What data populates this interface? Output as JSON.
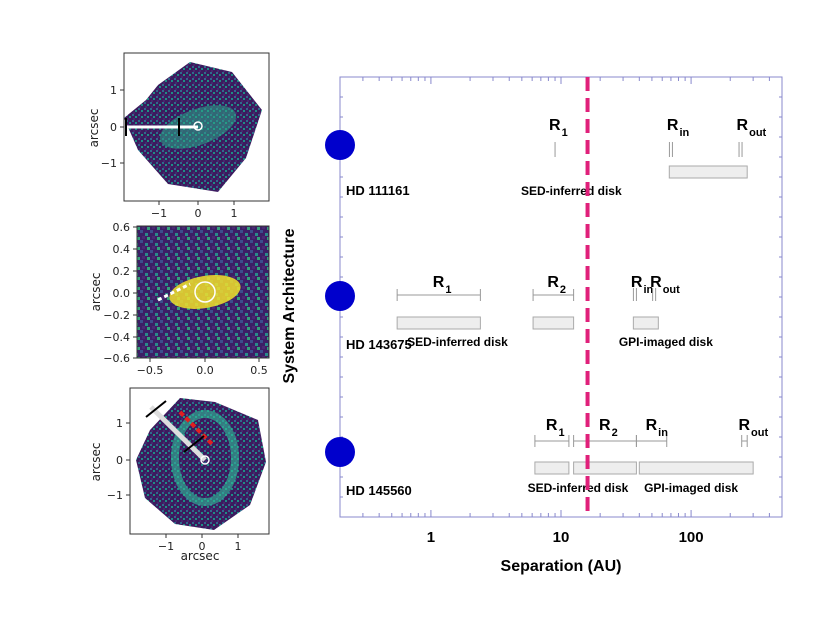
{
  "panels": [
    {
      "ylabel": "arcsec",
      "xlabel": "",
      "xticks": [
        "−1",
        "0",
        "1"
      ],
      "yticks": [
        "1",
        "0",
        "−1"
      ]
    },
    {
      "ylabel": "arcsec",
      "xlabel": "",
      "xticks": [
        "−0.5",
        "0.0",
        "0.5"
      ],
      "yticks": [
        "0.6",
        "0.4",
        "0.2",
        "0.0",
        "−0.2",
        "−0.4",
        "−0.6"
      ]
    },
    {
      "ylabel": "arcsec",
      "xlabel": "arcsec",
      "xticks": [
        "−1",
        "0",
        "1"
      ],
      "yticks": [
        "1",
        "0",
        "−1"
      ]
    }
  ],
  "chart_data": {
    "type": "system-architecture",
    "xlabel": "Separation (AU)",
    "ylabel": "System Architecture",
    "xscale": "log",
    "xlim": [
      0.2,
      500
    ],
    "xticks": [
      1,
      10,
      100
    ],
    "xtick_labels": [
      "1",
      "10",
      "100"
    ],
    "vline": {
      "x": 16,
      "color": "#e0207a",
      "style": "dashed"
    },
    "colors": {
      "star": "#0000cc",
      "disk_fill": "#eeeeee",
      "disk_edge": "#aaaaaa",
      "frame": "#8888cc"
    },
    "systems": [
      {
        "name": "HD 111161",
        "markers": [
          {
            "label": "R",
            "sub": "1",
            "x": 9
          }
        ],
        "marker_pairs": [
          {
            "label": "R",
            "sub": "in",
            "x": 70,
            "dx": 0.5
          },
          {
            "label": "R",
            "sub": "out",
            "x": 240,
            "dx": 0.6
          }
        ],
        "disks": [
          {
            "name": "GPI-imaged disk",
            "from": 68,
            "to": 270
          }
        ],
        "text_labels": [
          {
            "text": "SED-inferred disk",
            "x": 12
          }
        ]
      },
      {
        "name": "HD 143675",
        "ranges": [
          {
            "label": "R",
            "sub": "1",
            "from": 0.55,
            "to": 2.4
          },
          {
            "label": "R",
            "sub": "2",
            "from": 6.1,
            "to": 12.5
          }
        ],
        "marker_pairs": [
          {
            "label": "R",
            "sub": "in",
            "x": 37,
            "dx": 0.6
          },
          {
            "label": "R",
            "sub": "out",
            "x": 52,
            "dx": 0.5
          }
        ],
        "disks": [
          {
            "name": "SED-inferred disk",
            "from": 0.55,
            "to": 2.4,
            "labeled": false
          },
          {
            "name": "SED-inferred disk",
            "from": 6.1,
            "to": 12.5,
            "labeled": false
          },
          {
            "name": "GPI-imaged disk",
            "from": 36,
            "to": 56,
            "labeled": false
          }
        ],
        "text_labels": [
          {
            "text": "SED-inferred disk",
            "x": 1.6
          },
          {
            "text": "GPI-imaged disk",
            "x": 64
          }
        ]
      },
      {
        "name": "HD 145560",
        "ranges": [
          {
            "label": "R",
            "sub": "1",
            "from": 6.3,
            "to": 11.5
          },
          {
            "label": "R",
            "sub": "2",
            "from": 12.5,
            "to": 38
          },
          {
            "label": "R",
            "sub": "in",
            "from": 38,
            "to": 65
          },
          {
            "label": "R",
            "sub": "out",
            "from": 245,
            "to": 270
          }
        ],
        "disks": [
          {
            "name": "SED-inferred disk",
            "from": 6.3,
            "to": 11.5,
            "labeled": false
          },
          {
            "name": "SED-inferred disk",
            "from": 12.5,
            "to": 38,
            "labeled": false
          },
          {
            "name": "GPI-imaged disk",
            "from": 40,
            "to": 300,
            "labeled": false
          }
        ],
        "text_labels": [
          {
            "text": "SED-inferred disk",
            "x": 13.5
          },
          {
            "text": "GPI-imaged disk",
            "x": 100
          }
        ]
      }
    ]
  }
}
